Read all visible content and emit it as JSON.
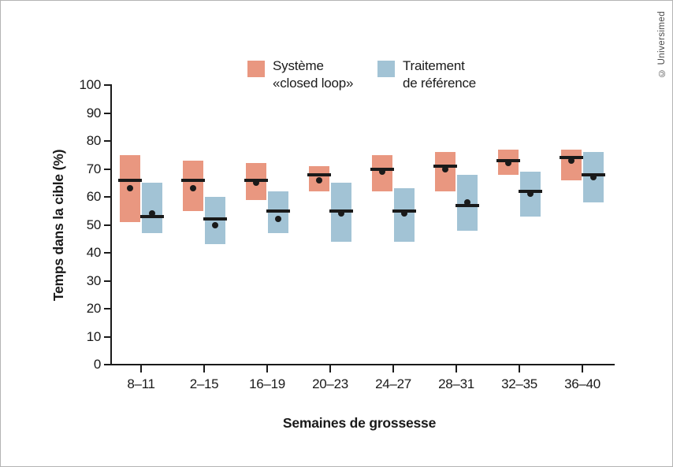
{
  "copyright": "© Universimed",
  "chart_data": {
    "type": "bar",
    "subtype": "floating-range-bars-with-median-and-mean",
    "title": "",
    "xlabel": "Semaines de grossesse",
    "ylabel": "Temps dans la cible (%)",
    "ylim": [
      0,
      100
    ],
    "yticks": [
      0,
      10,
      20,
      30,
      40,
      50,
      60,
      70,
      80,
      90,
      100
    ],
    "grid": "off",
    "legend_position": "top",
    "categories": [
      "8–11",
      "2–15",
      "16–19",
      "20–23",
      "24–27",
      "28–31",
      "32–35",
      "36–40"
    ],
    "mark_colors": {
      "median_line": "#1a1a1a",
      "mean_dot": "#1a1a1a"
    },
    "series": [
      {
        "name": "Système «closed loop»",
        "legend_line1": "Système",
        "legend_line2": "«closed loop»",
        "color": "#e99780",
        "bars": [
          {
            "low": 51,
            "high": 75,
            "median": 66,
            "mean": 63
          },
          {
            "low": 55,
            "high": 73,
            "median": 66,
            "mean": 63
          },
          {
            "low": 59,
            "high": 72,
            "median": 66,
            "mean": 65
          },
          {
            "low": 62,
            "high": 71,
            "median": 68,
            "mean": 66
          },
          {
            "low": 62,
            "high": 75,
            "median": 70,
            "mean": 69
          },
          {
            "low": 62,
            "high": 76,
            "median": 71,
            "mean": 70
          },
          {
            "low": 68,
            "high": 77,
            "median": 73,
            "mean": 72
          },
          {
            "low": 66,
            "high": 77,
            "median": 74,
            "mean": 73
          }
        ]
      },
      {
        "name": "Traitement de référence",
        "legend_line1": "Traitement",
        "legend_line2": "de référence",
        "color": "#a2c3d5",
        "bars": [
          {
            "low": 47,
            "high": 65,
            "median": 53,
            "mean": 54
          },
          {
            "low": 43,
            "high": 60,
            "median": 52,
            "mean": 50
          },
          {
            "low": 47,
            "high": 62,
            "median": 55,
            "mean": 52
          },
          {
            "low": 44,
            "high": 65,
            "median": 55,
            "mean": 54
          },
          {
            "low": 44,
            "high": 63,
            "median": 55,
            "mean": 54
          },
          {
            "low": 48,
            "high": 68,
            "median": 57,
            "mean": 58
          },
          {
            "low": 53,
            "high": 69,
            "median": 62,
            "mean": 61
          },
          {
            "low": 58,
            "high": 76,
            "median": 68,
            "mean": 67
          }
        ]
      }
    ]
  }
}
